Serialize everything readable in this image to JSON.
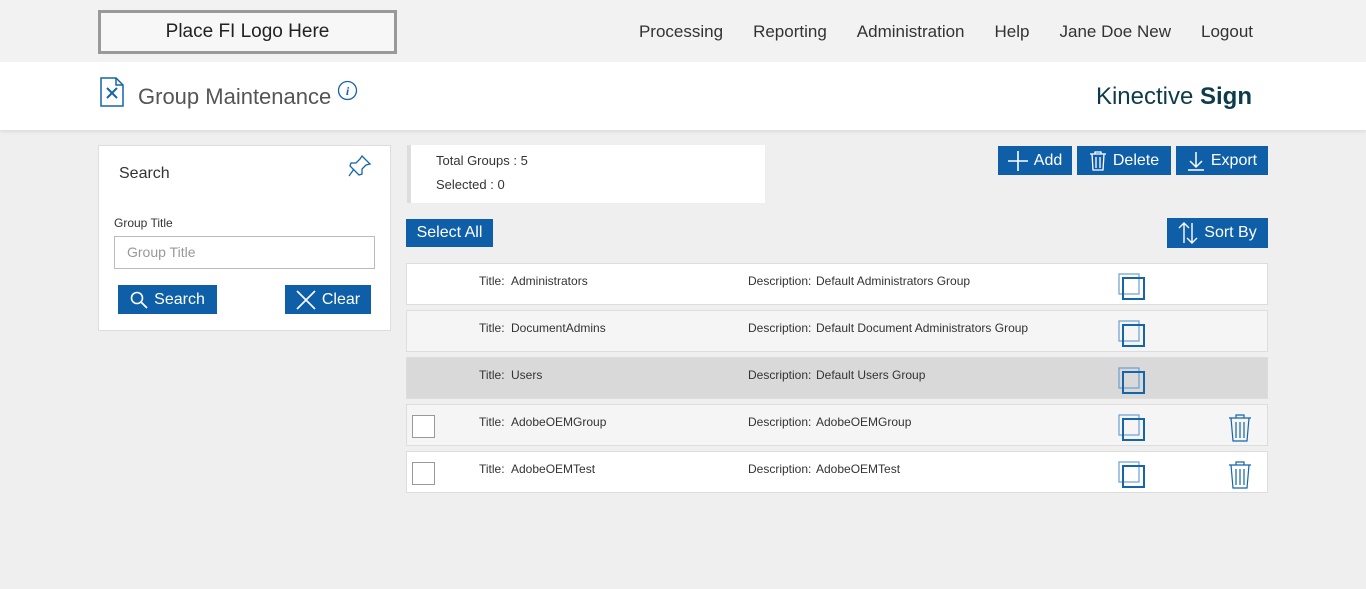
{
  "header": {
    "logo": "Place FI Logo Here",
    "nav": [
      "Processing",
      "Reporting",
      "Administration",
      "Help",
      "Jane Doe New",
      "Logout"
    ]
  },
  "page": {
    "title": "Group Maintenance",
    "brand": "Kinective",
    "brand_bold": "Sign"
  },
  "search": {
    "title": "Search",
    "field_label": "Group Title",
    "placeholder": "Group Title",
    "search_button": "Search",
    "clear_button": "Clear"
  },
  "summary": {
    "total_label": "Total Groups :",
    "total": 5,
    "selected_label": "Selected :",
    "selected": 0
  },
  "actions": {
    "add": "Add",
    "delete": "Delete",
    "export": "Export",
    "select_all": "Select All",
    "sort_by": "Sort By"
  },
  "groups": {
    "title_label": "Title:",
    "description_label": "Description:",
    "rows": [
      {
        "title": "Administrators",
        "description": "Default Administrators Group",
        "selectable": false,
        "deletable": false,
        "highlighted": false
      },
      {
        "title": "DocumentAdmins",
        "description": "Default Document Administrators Group",
        "selectable": false,
        "deletable": false,
        "highlighted": false
      },
      {
        "title": "Users",
        "description": "Default Users Group",
        "selectable": false,
        "deletable": false,
        "highlighted": true
      },
      {
        "title": "AdobeOEMGroup",
        "description": "AdobeOEMGroup",
        "selectable": true,
        "deletable": true,
        "highlighted": false
      },
      {
        "title": "AdobeOEMTest",
        "description": "AdobeOEMTest",
        "selectable": true,
        "deletable": true,
        "highlighted": false
      }
    ]
  }
}
